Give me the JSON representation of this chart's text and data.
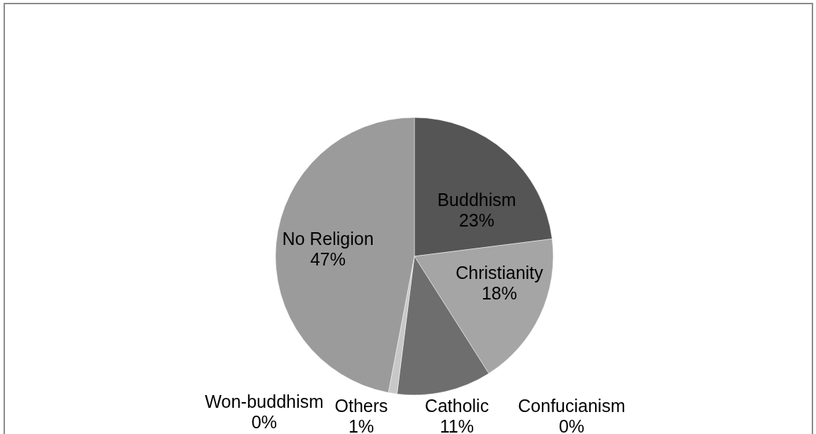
{
  "chart_data": {
    "type": "pie",
    "categories": [
      "Buddhism",
      "Christianity",
      "Catholic",
      "Confucianism",
      "Won-buddhism",
      "Others",
      "No Religion"
    ],
    "values": [
      23,
      18,
      11,
      0,
      0,
      1,
      47
    ],
    "value_labels": [
      "23%",
      "18%",
      "11%",
      "0%",
      "0%",
      "1%",
      "47%"
    ],
    "colors": [
      "#555555",
      "#a5a5a5",
      "#6e6e6e",
      "#404040",
      "#4a4a4a",
      "#c8c8c8",
      "#9b9b9b"
    ]
  }
}
